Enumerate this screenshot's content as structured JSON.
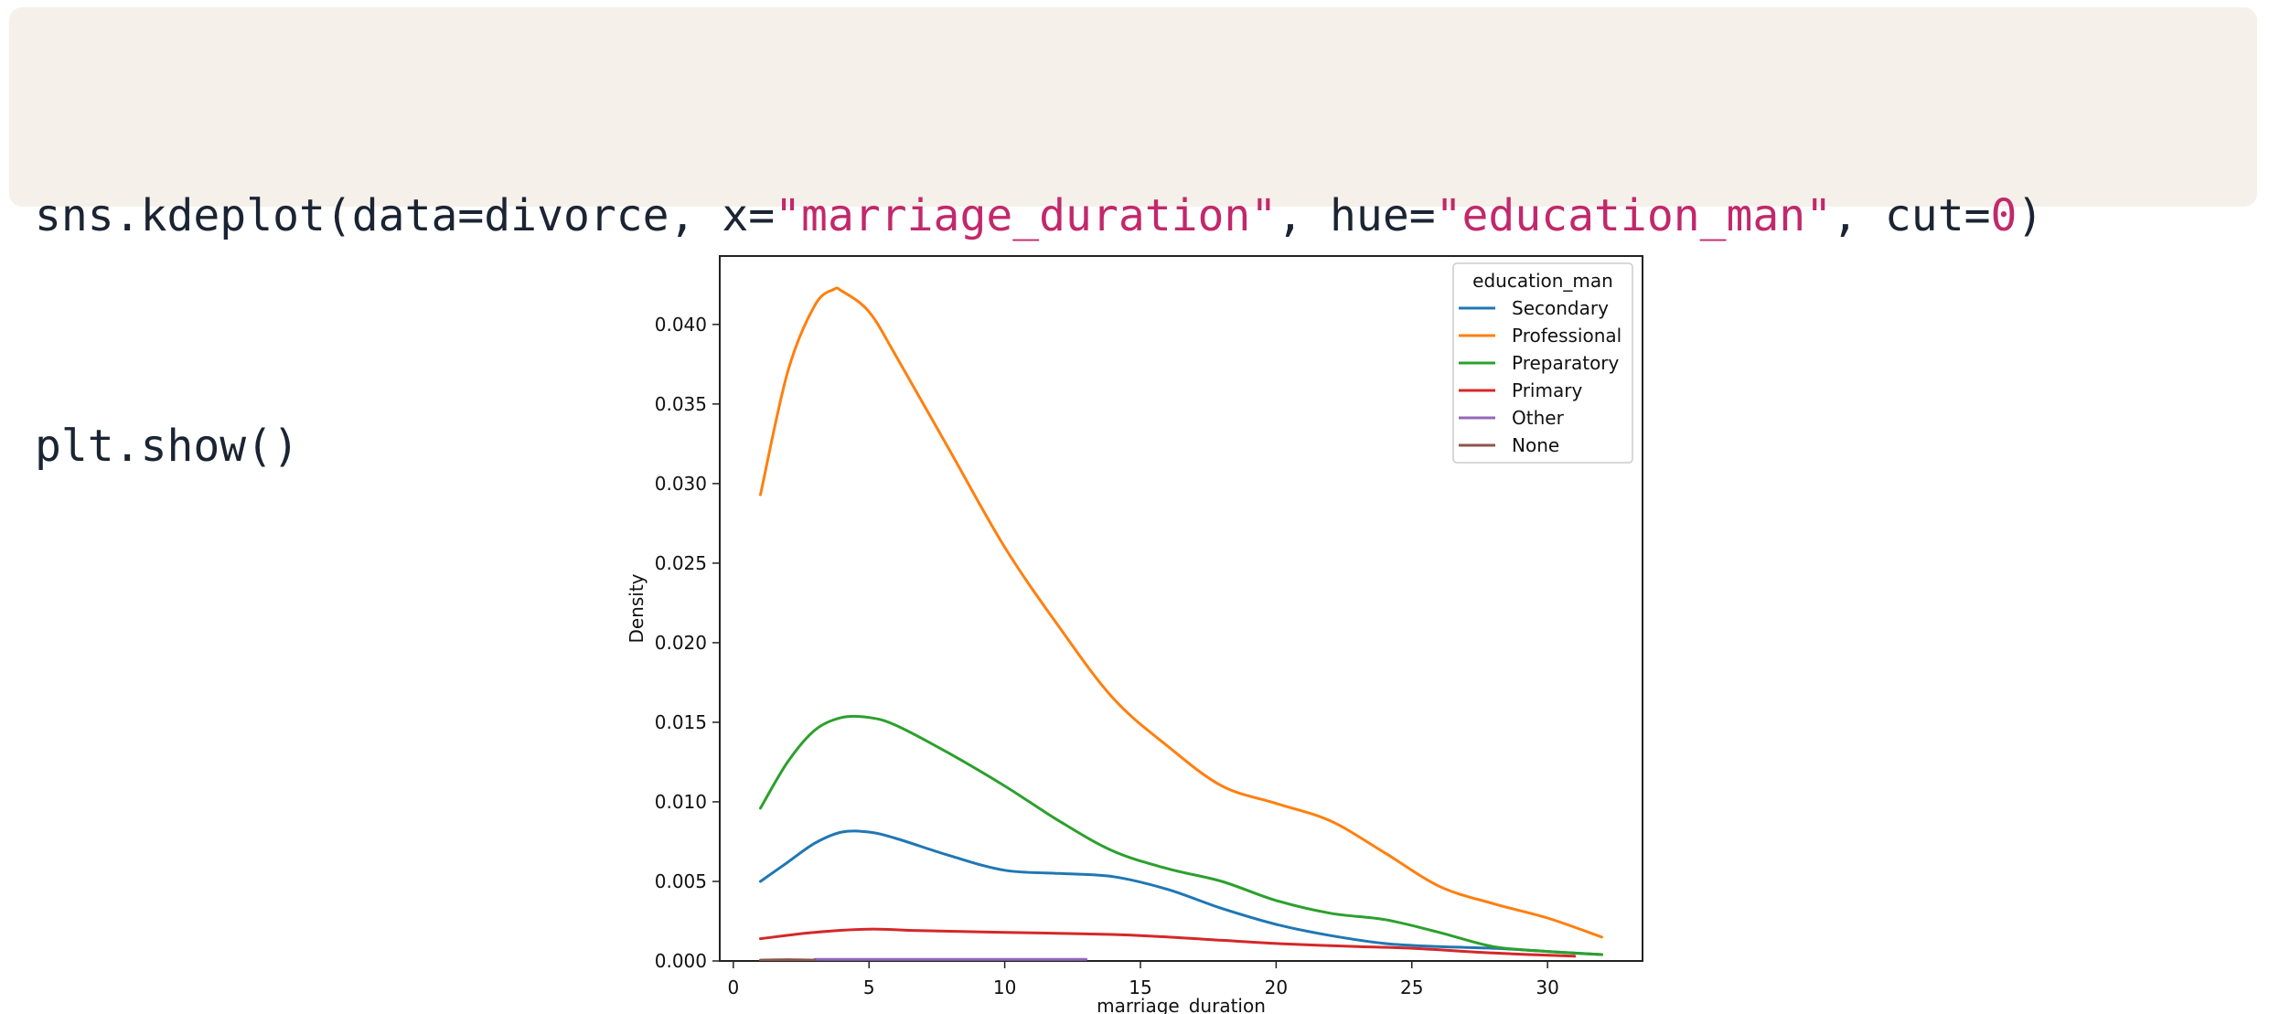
{
  "code": {
    "line1": {
      "p1": "sns.kdeplot(data=divorce, x=",
      "s1": "\"marriage_duration\"",
      "p2": ", hue=",
      "s2": "\"education_man\"",
      "p3": ", cut=",
      "n1": "0",
      "p4": ")"
    },
    "line2": "plt.show()"
  },
  "colors": {
    "Secondary": "#1f77b4",
    "Professional": "#ff7f0e",
    "Preparatory": "#2ca02c",
    "Primary": "#d62728",
    "Other": "#9467bd",
    "None": "#8c564b"
  },
  "chart_data": {
    "type": "line",
    "xlabel": "marriage_duration",
    "ylabel": "Density",
    "xlim": [
      -0.5,
      33.5
    ],
    "ylim": [
      0,
      0.0443
    ],
    "xticks": [
      "0",
      "5",
      "10",
      "15",
      "20",
      "25",
      "30"
    ],
    "yticks": [
      "0.000",
      "0.005",
      "0.010",
      "0.015",
      "0.020",
      "0.025",
      "0.030",
      "0.035",
      "0.040"
    ],
    "grid": false,
    "legend": {
      "title": "education_man",
      "position": "top-right"
    },
    "series": [
      {
        "name": "Secondary",
        "x": [
          1,
          2,
          3,
          4,
          5,
          6,
          8,
          10,
          12,
          14,
          16,
          18,
          20,
          22,
          24,
          26,
          28,
          30,
          32
        ],
        "y": [
          0.005,
          0.0062,
          0.0074,
          0.0081,
          0.0081,
          0.0077,
          0.0066,
          0.0057,
          0.0055,
          0.0053,
          0.0045,
          0.0033,
          0.0023,
          0.0016,
          0.0011,
          0.0009,
          0.0008,
          0.0006,
          0.0004
        ]
      },
      {
        "name": "Professional",
        "x": [
          1,
          2,
          3,
          3.7,
          4,
          5,
          6,
          8,
          10,
          12,
          14,
          16,
          18,
          20,
          22,
          24,
          26,
          28,
          30,
          32
        ],
        "y": [
          0.0293,
          0.037,
          0.0412,
          0.0422,
          0.0421,
          0.0408,
          0.038,
          0.032,
          0.026,
          0.021,
          0.0165,
          0.0135,
          0.011,
          0.0099,
          0.0088,
          0.0068,
          0.0047,
          0.0036,
          0.0027,
          0.0015
        ]
      },
      {
        "name": "Preparatory",
        "x": [
          1,
          2,
          3,
          4,
          5,
          6,
          8,
          10,
          12,
          14,
          16,
          18,
          20,
          22,
          24,
          26,
          28,
          30,
          32
        ],
        "y": [
          0.0096,
          0.0125,
          0.0145,
          0.0153,
          0.0153,
          0.0148,
          0.013,
          0.011,
          0.0088,
          0.0069,
          0.0058,
          0.005,
          0.0038,
          0.003,
          0.0026,
          0.0018,
          0.0009,
          0.0006,
          0.0004
        ]
      },
      {
        "name": "Primary",
        "x": [
          1,
          3,
          5,
          7,
          10,
          13,
          15,
          18,
          20,
          23,
          25,
          28,
          31
        ],
        "y": [
          0.0014,
          0.0018,
          0.002,
          0.0019,
          0.0018,
          0.0017,
          0.0016,
          0.0013,
          0.0011,
          0.0009,
          0.0008,
          0.0005,
          0.0003
        ]
      },
      {
        "name": "Other",
        "x": [
          3,
          5,
          8,
          10,
          13
        ],
        "y": [
          0.0001,
          0.0001,
          0.0001,
          0.0001,
          0.0001
        ]
      },
      {
        "name": "None",
        "x": [
          1,
          2,
          3
        ],
        "y": [
          5e-05,
          8e-05,
          5e-05
        ]
      }
    ]
  }
}
